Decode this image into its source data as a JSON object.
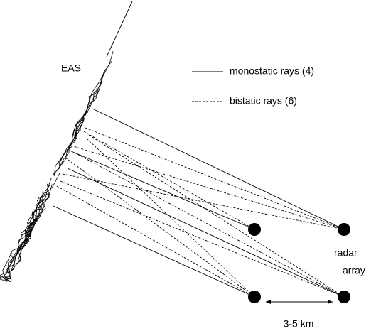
{
  "shower_label": "EAS",
  "legend": [
    {
      "label": "monostatic rays (4)"
    },
    {
      "label": "bistatic rays (6)"
    }
  ],
  "receiver_label": [
    "radar",
    "array"
  ],
  "distance_label": "3-5 km"
}
